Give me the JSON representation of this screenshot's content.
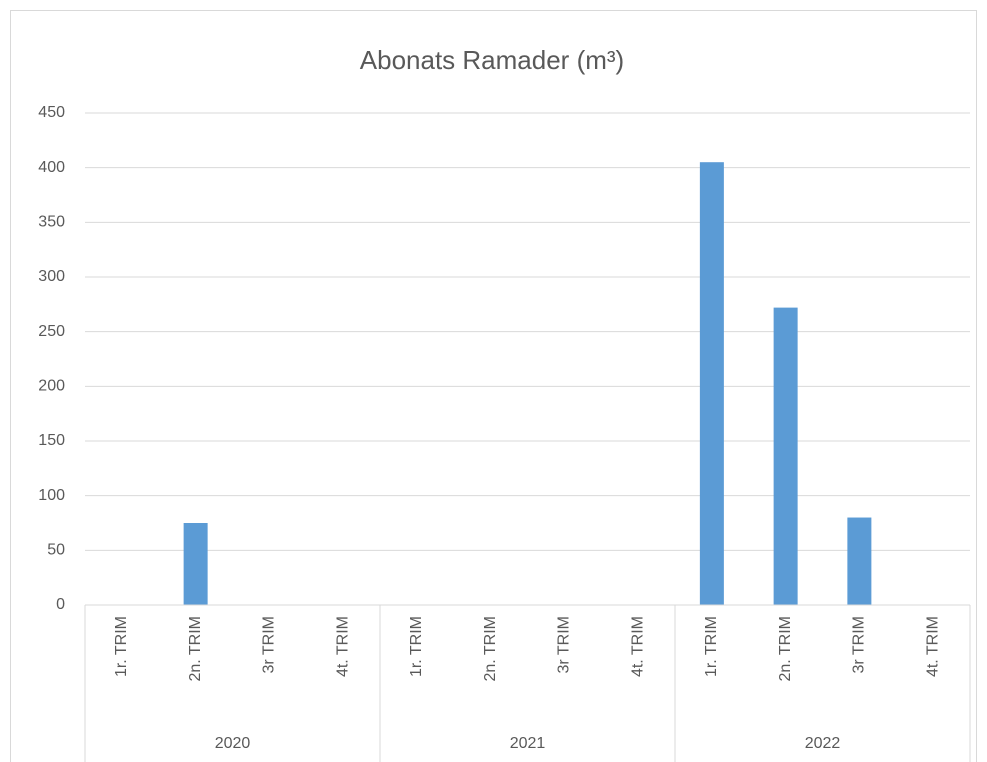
{
  "chart_data": {
    "type": "bar",
    "title": "Abonats Ramader (m³)",
    "categories": [
      "1r. TRIM",
      "2n. TRIM",
      "3r TRIM",
      "4t. TRIM",
      "1r. TRIM",
      "2n. TRIM",
      "3r TRIM",
      "4t. TRIM",
      "1r. TRIM",
      "2n. TRIM",
      "3r TRIM",
      "4t. TRIM"
    ],
    "groups": [
      "2020",
      "2021",
      "2022"
    ],
    "values": [
      null,
      75,
      null,
      null,
      null,
      null,
      null,
      null,
      405,
      272,
      80,
      null
    ],
    "color": "#5b9bd5",
    "ylim": [
      0,
      450
    ],
    "yticks": [
      0,
      50,
      100,
      150,
      200,
      250,
      300,
      350,
      400,
      450
    ],
    "grid": true
  }
}
